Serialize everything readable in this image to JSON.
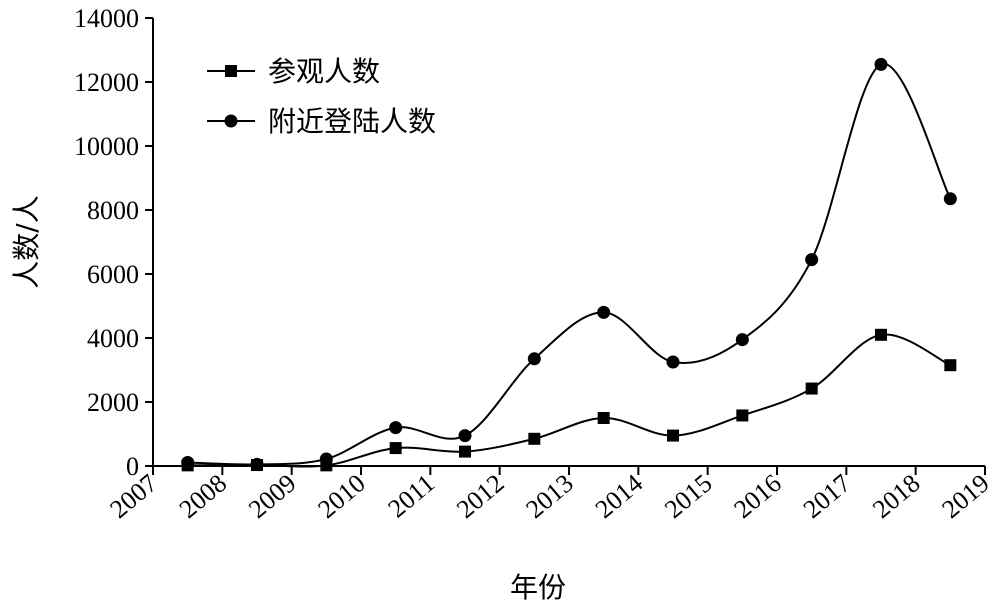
{
  "chart_data": {
    "type": "line",
    "xlabel": "年份",
    "ylabel": "人数/人",
    "ylim": [
      0,
      14000
    ],
    "yticks": [
      0,
      2000,
      4000,
      6000,
      8000,
      10000,
      12000,
      14000
    ],
    "xticks": [
      "2007",
      "2008",
      "2009",
      "2010",
      "2011",
      "2012",
      "2013",
      "2014",
      "2015",
      "2016",
      "2017",
      "2018",
      "2019"
    ],
    "x": [
      2007.5,
      2008.5,
      2009.5,
      2010.5,
      2011.5,
      2012.5,
      2013.5,
      2014.5,
      2015.5,
      2016.5,
      2017.5,
      2018.5
    ],
    "legend_position": "top-left",
    "grid": false,
    "series": [
      {
        "name": "参观人数",
        "marker": "square",
        "color": "#000000",
        "values": [
          20,
          30,
          20,
          560,
          450,
          850,
          1500,
          950,
          1580,
          2420,
          4100,
          3150
        ]
      },
      {
        "name": "附近登陆人数",
        "marker": "circle",
        "color": "#000000",
        "values": [
          110,
          50,
          220,
          1200,
          950,
          3350,
          4800,
          3250,
          3950,
          6450,
          12550,
          8350
        ]
      }
    ]
  }
}
